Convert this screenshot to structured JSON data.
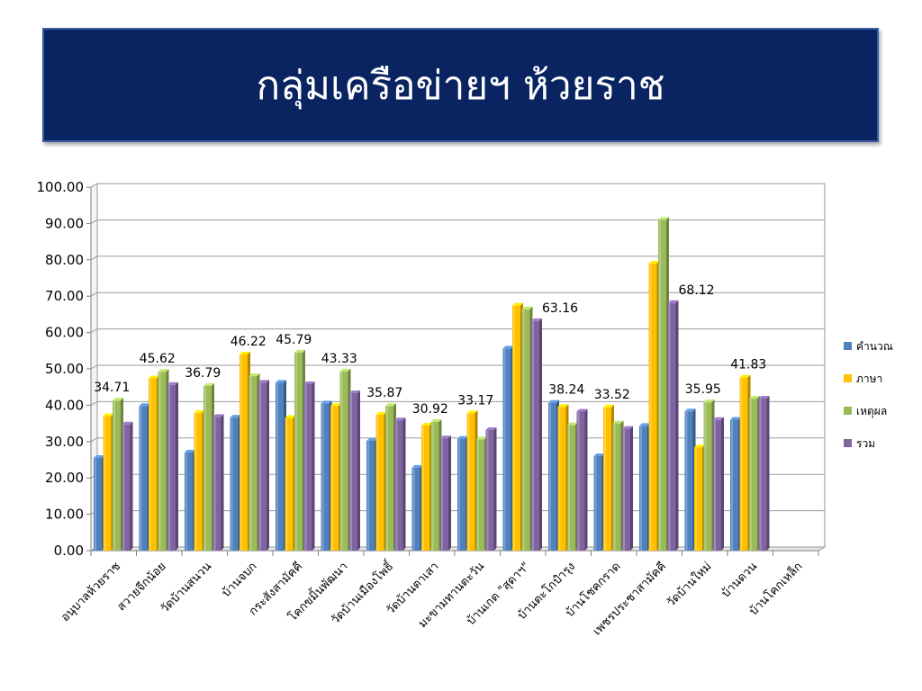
{
  "header": {
    "title": "กลุ่มเครือข่ายฯ ห้วยราช"
  },
  "chart_data": {
    "type": "bar",
    "title": "",
    "xlabel": "",
    "ylabel": "",
    "ylim": [
      0,
      100
    ],
    "yticks": [
      "0.00",
      "10.00",
      "20.00",
      "30.00",
      "40.00",
      "50.00",
      "60.00",
      "70.00",
      "80.00",
      "90.00",
      "100.00"
    ],
    "grid": true,
    "legend_position": "right",
    "categories": [
      "อนุบาลห้วยราช",
      "สวายจีกน้อย",
      "วัดบ้านสนวน",
      "บ้านจบก",
      "กระสังสามัคคี",
      "โคกขมิ้นพัฒนา",
      "วัดบ้านเมืองโพธิ์",
      "วัดบ้านตาเสา",
      "มะขามทานตะวัน",
      "บ้านเกต \"สุดาฯ\"",
      "บ้านตะโกปำรุง",
      "บ้านโชคกราด",
      "เพชรประชาสามัคคี",
      "วัดบ้านใหม่",
      "บ้านดวน",
      "บ้านโคกเหล็ก"
    ],
    "series": [
      {
        "name": "คำนวณ",
        "color": "#4f81bd",
        "values": [
          25.5,
          39.8,
          27.0,
          36.6,
          46.2,
          40.5,
          30.2,
          22.8,
          30.8,
          55.6,
          40.7,
          26.0,
          34.3,
          38.3,
          36.0,
          null
        ]
      },
      {
        "name": "ภาษา",
        "color": "#ffc000",
        "values": [
          37.0,
          47.4,
          37.9,
          54.0,
          36.5,
          39.8,
          37.4,
          34.4,
          37.8,
          67.4,
          39.5,
          39.4,
          79.0,
          28.4,
          47.6,
          null
        ]
      },
      {
        "name": "เหตุผล",
        "color": "#9bbb59",
        "values": [
          41.3,
          49.2,
          45.3,
          48.0,
          54.5,
          49.3,
          39.8,
          35.4,
          30.6,
          66.4,
          34.5,
          35.0,
          91.0,
          40.8,
          41.8,
          null
        ]
      },
      {
        "name": "รวม",
        "color": "#8064a2",
        "values": [
          34.71,
          45.62,
          36.79,
          46.22,
          45.79,
          43.33,
          35.87,
          30.92,
          33.17,
          63.16,
          38.24,
          33.52,
          68.12,
          35.95,
          41.83,
          null
        ]
      }
    ],
    "data_labels": [
      "34.71",
      "45.62",
      "36.79",
      "46.22",
      "45.79",
      "43.33",
      "35.87",
      "30.92",
      "33.17",
      "63.16",
      "38.24",
      "33.52",
      "68.12",
      "35.95",
      "41.83",
      ""
    ]
  }
}
